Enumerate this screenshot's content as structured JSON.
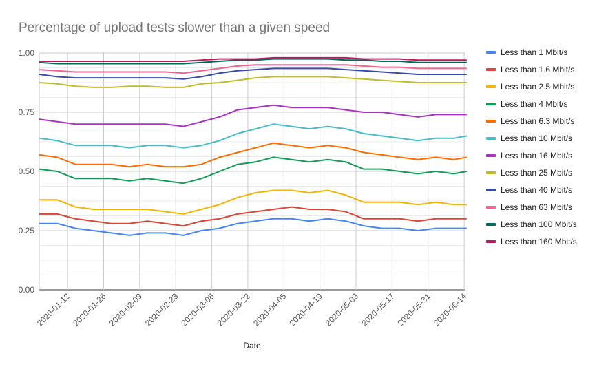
{
  "chart_data": {
    "type": "line",
    "title": "Percentage of upload tests slower than a given speed",
    "xlabel": "Date",
    "ylabel": "",
    "ylim": [
      0,
      1
    ],
    "yticks": [
      "0.00",
      "0.25",
      "0.50",
      "0.75",
      "1.00"
    ],
    "xticks": [
      "2020-01-12",
      "2020-01-26",
      "2020-02-09",
      "2020-02-23",
      "2020-03-08",
      "2020-03-22",
      "2020-04-05",
      "2020-04-19",
      "2020-05-03",
      "2020-05-17",
      "2020-05-31",
      "2020-06-14"
    ],
    "grid": true,
    "legend_position": "right",
    "x": [
      "2020-01-01",
      "2020-01-08",
      "2020-01-15",
      "2020-01-22",
      "2020-01-29",
      "2020-02-05",
      "2020-02-12",
      "2020-02-19",
      "2020-02-26",
      "2020-03-04",
      "2020-03-11",
      "2020-03-18",
      "2020-03-25",
      "2020-04-01",
      "2020-04-08",
      "2020-04-15",
      "2020-04-22",
      "2020-04-29",
      "2020-05-06",
      "2020-05-13",
      "2020-05-20",
      "2020-05-27",
      "2020-06-03",
      "2020-06-10",
      "2020-06-15"
    ],
    "series": [
      {
        "name": "Less than 1 Mbit/s",
        "color": "#4285F4",
        "values": [
          0.28,
          0.28,
          0.26,
          0.25,
          0.24,
          0.23,
          0.24,
          0.24,
          0.23,
          0.25,
          0.26,
          0.28,
          0.29,
          0.3,
          0.3,
          0.29,
          0.3,
          0.29,
          0.27,
          0.26,
          0.26,
          0.25,
          0.26,
          0.26,
          0.26
        ]
      },
      {
        "name": "Less than 1.6 Mbit/s",
        "color": "#DB4437",
        "values": [
          0.32,
          0.32,
          0.3,
          0.29,
          0.28,
          0.28,
          0.29,
          0.28,
          0.27,
          0.29,
          0.3,
          0.32,
          0.33,
          0.34,
          0.35,
          0.34,
          0.34,
          0.33,
          0.3,
          0.3,
          0.3,
          0.29,
          0.3,
          0.3,
          0.3
        ]
      },
      {
        "name": "Less than 2.5 Mbit/s",
        "color": "#F4B400",
        "values": [
          0.38,
          0.38,
          0.35,
          0.34,
          0.34,
          0.34,
          0.34,
          0.33,
          0.32,
          0.34,
          0.36,
          0.39,
          0.41,
          0.42,
          0.42,
          0.41,
          0.42,
          0.4,
          0.37,
          0.37,
          0.37,
          0.36,
          0.37,
          0.36,
          0.36
        ]
      },
      {
        "name": "Less than 4 Mbit/s",
        "color": "#0F9D58",
        "values": [
          0.51,
          0.5,
          0.47,
          0.47,
          0.47,
          0.46,
          0.47,
          0.46,
          0.45,
          0.47,
          0.5,
          0.53,
          0.54,
          0.56,
          0.55,
          0.54,
          0.55,
          0.54,
          0.51,
          0.51,
          0.5,
          0.49,
          0.5,
          0.49,
          0.5
        ]
      },
      {
        "name": "Less than 6.3 Mbit/s",
        "color": "#FF6D01",
        "values": [
          0.57,
          0.56,
          0.53,
          0.53,
          0.53,
          0.52,
          0.53,
          0.52,
          0.52,
          0.53,
          0.56,
          0.58,
          0.6,
          0.62,
          0.61,
          0.6,
          0.61,
          0.6,
          0.58,
          0.57,
          0.56,
          0.55,
          0.56,
          0.55,
          0.56
        ]
      },
      {
        "name": "Less than 10 Mbit/s",
        "color": "#46BDC6",
        "values": [
          0.64,
          0.63,
          0.61,
          0.61,
          0.61,
          0.6,
          0.61,
          0.61,
          0.6,
          0.61,
          0.63,
          0.66,
          0.68,
          0.7,
          0.69,
          0.68,
          0.69,
          0.68,
          0.66,
          0.65,
          0.64,
          0.63,
          0.64,
          0.64,
          0.65
        ]
      },
      {
        "name": "Less than 16 Mbit/s",
        "color": "#AB30C4",
        "values": [
          0.72,
          0.71,
          0.7,
          0.7,
          0.7,
          0.7,
          0.7,
          0.7,
          0.69,
          0.71,
          0.73,
          0.76,
          0.77,
          0.78,
          0.77,
          0.77,
          0.77,
          0.76,
          0.75,
          0.75,
          0.74,
          0.73,
          0.74,
          0.74,
          0.74
        ]
      },
      {
        "name": "Less than 25 Mbit/s",
        "color": "#C0BC2A",
        "values": [
          0.875,
          0.87,
          0.86,
          0.855,
          0.855,
          0.86,
          0.86,
          0.855,
          0.855,
          0.87,
          0.875,
          0.885,
          0.895,
          0.9,
          0.9,
          0.9,
          0.9,
          0.895,
          0.89,
          0.885,
          0.88,
          0.875,
          0.875,
          0.875,
          0.875
        ]
      },
      {
        "name": "Less than 40 Mbit/s",
        "color": "#3949AB",
        "values": [
          0.91,
          0.9,
          0.895,
          0.895,
          0.895,
          0.895,
          0.895,
          0.895,
          0.89,
          0.9,
          0.915,
          0.925,
          0.93,
          0.935,
          0.935,
          0.935,
          0.935,
          0.93,
          0.925,
          0.92,
          0.915,
          0.91,
          0.91,
          0.91,
          0.91
        ]
      },
      {
        "name": "Less than 63 Mbit/s",
        "color": "#F06292",
        "values": [
          0.93,
          0.925,
          0.92,
          0.92,
          0.92,
          0.92,
          0.92,
          0.92,
          0.915,
          0.925,
          0.935,
          0.945,
          0.95,
          0.95,
          0.95,
          0.95,
          0.95,
          0.95,
          0.945,
          0.94,
          0.94,
          0.935,
          0.935,
          0.935,
          0.935
        ]
      },
      {
        "name": "Less than 100 Mbit/s",
        "color": "#00695C",
        "values": [
          0.96,
          0.955,
          0.955,
          0.955,
          0.955,
          0.955,
          0.955,
          0.955,
          0.955,
          0.96,
          0.965,
          0.97,
          0.97,
          0.975,
          0.975,
          0.975,
          0.975,
          0.97,
          0.97,
          0.965,
          0.965,
          0.96,
          0.96,
          0.96,
          0.96
        ]
      },
      {
        "name": "Less than 160 Mbit/s",
        "color": "#C2185B",
        "values": [
          0.965,
          0.965,
          0.965,
          0.965,
          0.965,
          0.965,
          0.965,
          0.965,
          0.965,
          0.97,
          0.975,
          0.975,
          0.975,
          0.98,
          0.98,
          0.98,
          0.98,
          0.98,
          0.975,
          0.975,
          0.975,
          0.97,
          0.97,
          0.97,
          0.97
        ]
      }
    ]
  }
}
